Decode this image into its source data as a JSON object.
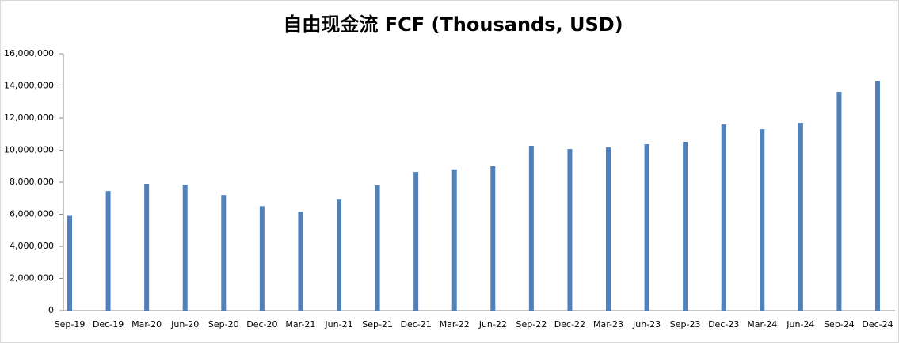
{
  "chart_data": {
    "type": "bar",
    "title": "自由现金流 FCF (Thousands, USD)",
    "categories": [
      "Sep-19",
      "Dec-19",
      "Mar-20",
      "Jun-20",
      "Sep-20",
      "Dec-20",
      "Mar-21",
      "Jun-21",
      "Sep-21",
      "Dec-21",
      "Mar-22",
      "Jun-22",
      "Sep-22",
      "Dec-22",
      "Mar-23",
      "Jun-23",
      "Sep-23",
      "Dec-23",
      "Mar-24",
      "Jun-24",
      "Sep-24",
      "Dec-24"
    ],
    "values": [
      5900000,
      7450000,
      7900000,
      7850000,
      7200000,
      6500000,
      6170000,
      6950000,
      7800000,
      8640000,
      8800000,
      8990000,
      10270000,
      10070000,
      10170000,
      10370000,
      10520000,
      11600000,
      11300000,
      11700000,
      13630000,
      14320000
    ],
    "color": "#4f81bd",
    "ylim": [
      0,
      16000000
    ],
    "yticks": [
      {
        "value": 0,
        "label": "0"
      },
      {
        "value": 2000000,
        "label": "2,000,000"
      },
      {
        "value": 4000000,
        "label": "4,000,000"
      },
      {
        "value": 6000000,
        "label": "6,000,000"
      },
      {
        "value": 8000000,
        "label": "8,000,000"
      },
      {
        "value": 10000000,
        "label": "10,000,000"
      },
      {
        "value": 12000000,
        "label": "12,000,000"
      },
      {
        "value": 14000000,
        "label": "14,000,000"
      },
      {
        "value": 16000000,
        "label": "16,000,000"
      }
    ],
    "grid": false
  }
}
